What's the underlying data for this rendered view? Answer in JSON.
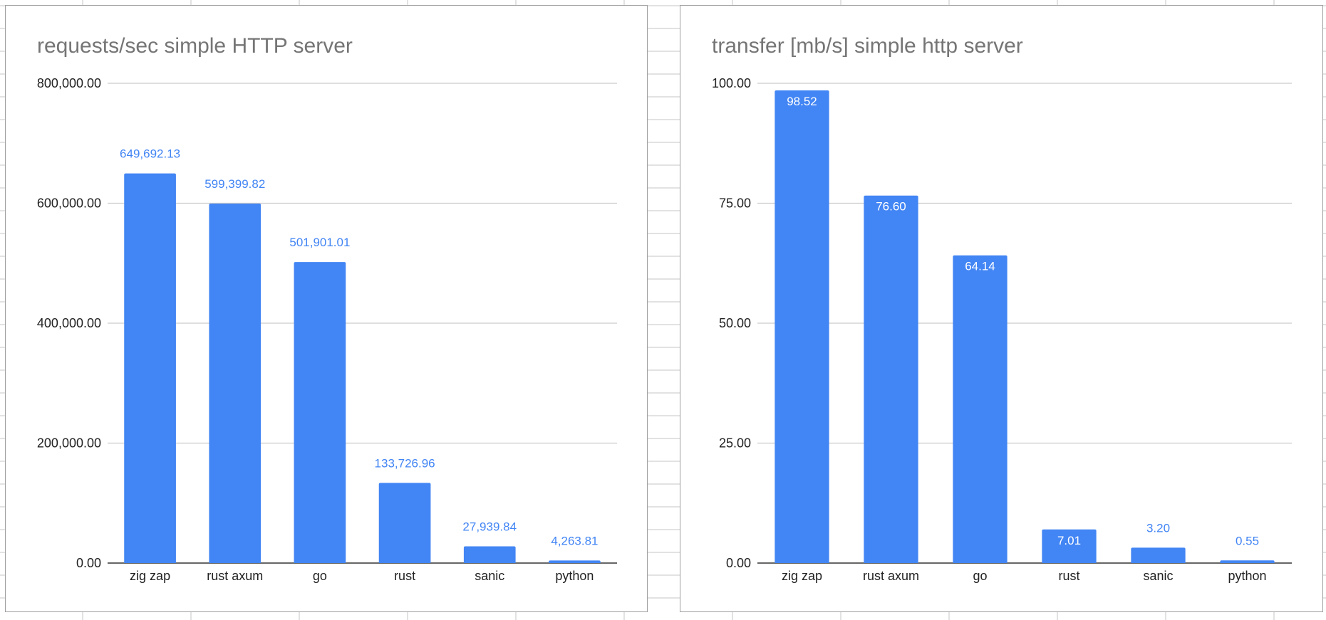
{
  "chart_data": [
    {
      "type": "bar",
      "title": "requests/sec simple HTTP server",
      "categories": [
        "zig zap",
        "rust axum",
        "go",
        "rust",
        "sanic",
        "python"
      ],
      "values": [
        649692.13,
        599399.82,
        501901.01,
        133726.96,
        27939.84,
        4263.81
      ],
      "data_labels": [
        "649,692.13",
        "599,399.82",
        "501,901.01",
        "133,726.96",
        "27,939.84",
        "4,263.81"
      ],
      "ylim": [
        0,
        800000
      ],
      "yticks": [
        0,
        200000,
        400000,
        600000,
        800000
      ],
      "ytick_labels": [
        "0.00",
        "200,000.00",
        "400,000.00",
        "600,000.00",
        "800,000.00"
      ],
      "xlabel": "",
      "ylabel": "",
      "grid": true,
      "legend": "none",
      "color": "#4285f4"
    },
    {
      "type": "bar",
      "title": "transfer [mb/s] simple http server",
      "categories": [
        "zig zap",
        "rust axum",
        "go",
        "rust",
        "sanic",
        "python"
      ],
      "values": [
        98.52,
        76.6,
        64.14,
        7.01,
        3.2,
        0.55
      ],
      "data_labels": [
        "98.52",
        "76.60",
        "64.14",
        "7.01",
        "3.20",
        "0.55"
      ],
      "ylim": [
        0,
        100
      ],
      "yticks": [
        0,
        25,
        50,
        75,
        100
      ],
      "ytick_labels": [
        "0.00",
        "25.00",
        "50.00",
        "75.00",
        "100.00"
      ],
      "xlabel": "",
      "ylabel": "",
      "grid": true,
      "legend": "none",
      "color": "#4285f4"
    }
  ]
}
